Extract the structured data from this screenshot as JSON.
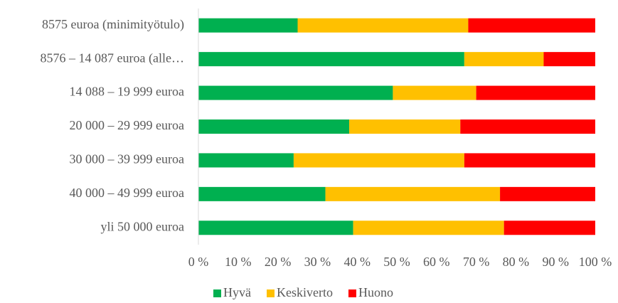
{
  "chart_data": {
    "type": "stacked_barh",
    "categories": [
      "8575 euroa (minimityötulo)",
      "8576 – 14 087 euroa (alle…",
      "14 088 – 19 999 euroa",
      "20 000 – 29 999 euroa",
      "30 000 – 39 999 euroa",
      "40 000 – 49 999 euroa",
      "yli 50 000 euroa"
    ],
    "series": [
      {
        "name": "Hyvä",
        "color": "#00b050",
        "values": [
          25,
          67,
          49,
          38,
          24,
          32,
          39
        ]
      },
      {
        "name": "Keskiverto",
        "color": "#ffc000",
        "values": [
          43,
          20,
          21,
          28,
          43,
          44,
          38
        ]
      },
      {
        "name": "Huono",
        "color": "#ff0000",
        "values": [
          32,
          13,
          30,
          34,
          33,
          24,
          23
        ]
      }
    ],
    "xlim": [
      0,
      100
    ],
    "xticks": [
      {
        "value": 0,
        "label": "0 %"
      },
      {
        "value": 10,
        "label": "10 %"
      },
      {
        "value": 20,
        "label": "20 %"
      },
      {
        "value": 30,
        "label": "30 %"
      },
      {
        "value": 40,
        "label": "40 %"
      },
      {
        "value": 50,
        "label": "50 %"
      },
      {
        "value": 60,
        "label": "60 %"
      },
      {
        "value": 70,
        "label": "70 %"
      },
      {
        "value": 80,
        "label": "80 %"
      },
      {
        "value": 90,
        "label": "90 %"
      },
      {
        "value": 100,
        "label": "100 %"
      }
    ],
    "grid": false,
    "legend": "bottom"
  }
}
